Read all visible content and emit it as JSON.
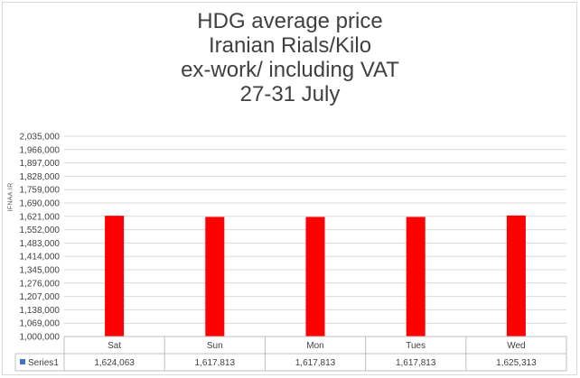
{
  "chart_data": {
    "type": "bar",
    "title_lines": [
      "HDG average price",
      "Iranian Rials/Kilo",
      "ex-work/ including VAT",
      "27-31  July"
    ],
    "watermark": "IFNAA.IR",
    "categories": [
      "Sat",
      "Sun",
      "Mon",
      "Tues",
      "Wed"
    ],
    "series": [
      {
        "name": "Series1",
        "values": [
          1624063,
          1617813,
          1617813,
          1617813,
          1625313
        ],
        "color": "#ff0000"
      }
    ],
    "value_labels": [
      "1,624,063",
      "1,617,813",
      "1,617,813",
      "1,617,813",
      "1,625,313"
    ],
    "ylim": [
      1000000,
      2035000
    ],
    "y_ticks": [
      "1,000,000",
      "1,069,000",
      "1,138,000",
      "1,207,000",
      "1,276,000",
      "1,345,000",
      "1,414,000",
      "1,483,000",
      "1,552,000",
      "1,621,000",
      "1,690,000",
      "1,759,000",
      "1,828,000",
      "1,897,000",
      "1,966,000",
      "2,035,000"
    ],
    "grid": true,
    "legend": "data-table-bottom"
  }
}
